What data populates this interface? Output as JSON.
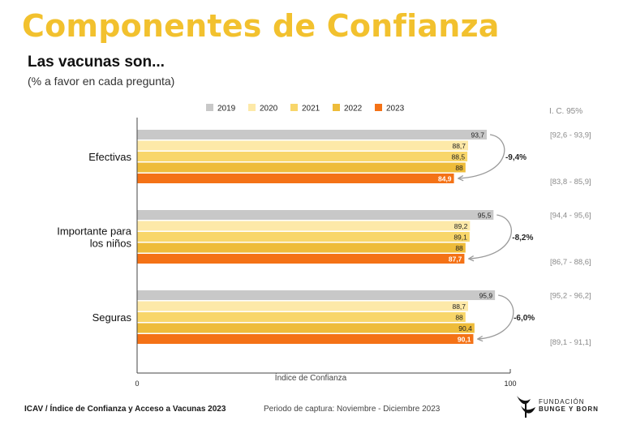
{
  "header": {
    "title": "Componentes de Confianza",
    "subtitle": "Las vacunas son...",
    "note": "(% a favor en cada pregunta)"
  },
  "footer": {
    "left": "ICAV / Índice de Confianza y Acceso a Vacunas 2023",
    "middle": "Periodo de captura: Noviembre - Diciembre 2023",
    "logo_line1": "FUNDACIÓN",
    "logo_line2": "BUNGE Y BORN"
  },
  "colors": {
    "title": "#f2c12e",
    "series": [
      "#c8c8c8",
      "#fde9a8",
      "#f8d66a",
      "#eebc3a",
      "#f47216"
    ],
    "arrow": "#9a9a9a"
  },
  "chart_data": {
    "type": "bar",
    "orientation": "horizontal",
    "title": "Las vacunas son...",
    "subtitle": "(% a favor en cada pregunta)",
    "categories": [
      "Efectivas",
      "Importante para los niños",
      "Seguras"
    ],
    "category_lines": [
      [
        "Efectivas"
      ],
      [
        "Importante para",
        "los niños"
      ],
      [
        "Seguras"
      ]
    ],
    "series": [
      {
        "name": "2019",
        "values": [
          93.7,
          95.5,
          95.9
        ],
        "labels": [
          "93,7",
          "95,5",
          "95,9"
        ]
      },
      {
        "name": "2020",
        "values": [
          88.7,
          89.2,
          88.7
        ],
        "labels": [
          "88,7",
          "89,2",
          "88,7"
        ]
      },
      {
        "name": "2021",
        "values": [
          88.5,
          89.1,
          88
        ],
        "labels": [
          "88,5",
          "89,1",
          "88"
        ]
      },
      {
        "name": "2022",
        "values": [
          88,
          88,
          90.4
        ],
        "labels": [
          "88",
          "88",
          "90,4"
        ]
      },
      {
        "name": "2023",
        "values": [
          84.9,
          87.7,
          90.1
        ],
        "labels": [
          "84,9",
          "87,7",
          "90,1"
        ]
      }
    ],
    "changes": [
      "-9,4%",
      "-8,2%",
      "-6,0%"
    ],
    "ci_header": "I. C. 95%",
    "ci_2019": [
      "[92,6 - 93,9]",
      "[94,4 - 95,6]",
      "[95,2 - 96,2]"
    ],
    "ci_2023": [
      "[83,8 - 85,9]",
      "[86,7 - 88,6]",
      "[89,1 - 91,1]"
    ],
    "xlabel": "Índice de Confianza",
    "xlim": [
      0,
      100
    ],
    "xticks": [
      "0",
      "100"
    ],
    "legend_position": "top"
  }
}
